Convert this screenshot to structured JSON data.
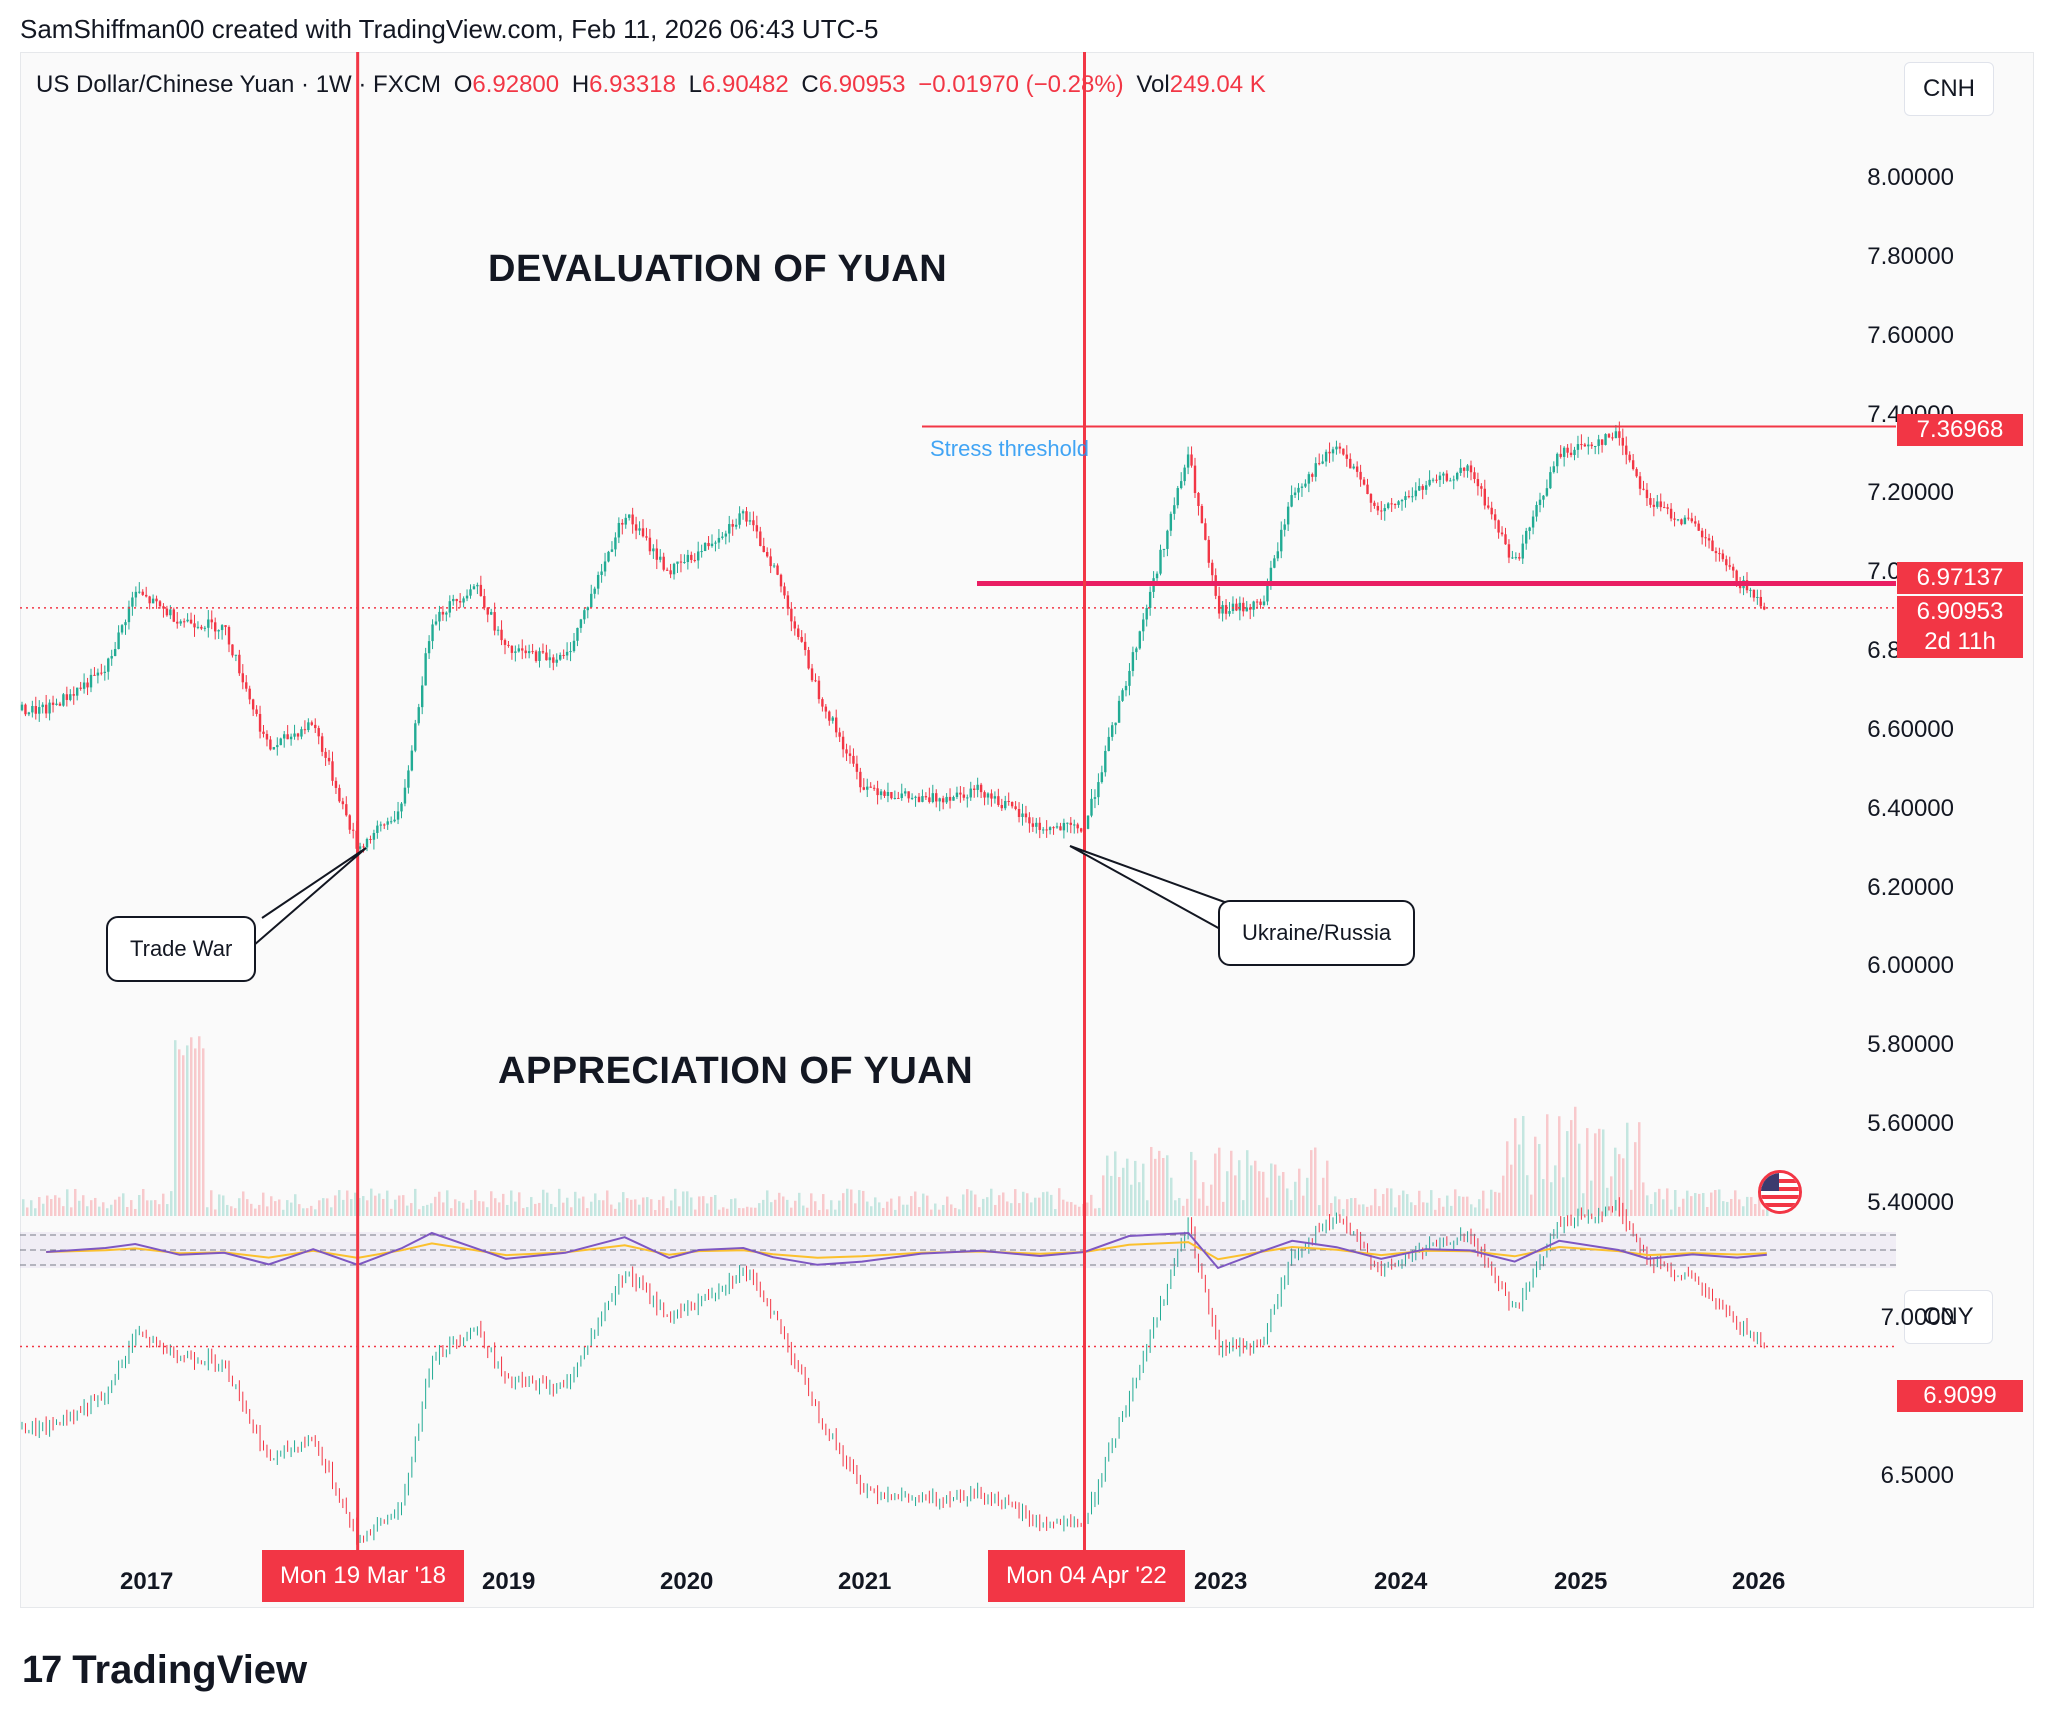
{
  "header": {
    "creator_line": "SamShiffman00 created with TradingView.com, Feb 11, 2026 06:43 UTC-5"
  },
  "symbol": {
    "name": "US Dollar/Chinese Yuan · 1W · FXCM",
    "open_label": "O",
    "open": "6.92800",
    "high_label": "H",
    "high": "6.93318",
    "low_label": "L",
    "low": "6.90482",
    "close_label": "C",
    "close": "6.90953",
    "change": "−0.01970 (−0.28%)",
    "vol_label": "Vol",
    "vol": "249.04 K"
  },
  "currency_top": "CNH",
  "currency_bottom": "CNY",
  "annotations": {
    "devaluation": "DEVALUATION OF YUAN",
    "appreciation": "APPRECIATION OF YUAN",
    "stress": "Stress threshold",
    "trade_war": "Trade War",
    "ukraine": "Ukraine/Russia"
  },
  "price_labels": {
    "stress": "7.36968",
    "support": "6.97137",
    "last": "6.90953",
    "countdown": "2d 11h",
    "cny_last": "6.9099"
  },
  "y_ticks_main": [
    "8.00000",
    "7.80000",
    "7.60000",
    "7.40000",
    "7.20000",
    "7.00000",
    "6.80000",
    "6.60000",
    "6.40000",
    "6.20000",
    "6.00000",
    "5.80000",
    "5.60000",
    "5.40000"
  ],
  "y_ticks_lower": [
    "7.0000",
    "6.5000"
  ],
  "x_axis": {
    "ticks": [
      "2017",
      "2019",
      "2020",
      "2021",
      "2023",
      "2024",
      "2025",
      "2026"
    ],
    "highlight_1": "Mon 19 Mar '18",
    "highlight_2": "Mon 04 Apr '22"
  },
  "brand": {
    "logo": "17",
    "name": "TradingView"
  },
  "colors": {
    "up": "#22ab94",
    "down": "#f23645",
    "line": "#f23645",
    "rsi": "#7e57c2",
    "rsi_ma": "#fbc02d"
  },
  "chart_data": {
    "type": "line",
    "title": "US Dollar/Chinese Yuan · 1W · FXCM",
    "x": [
      "2016-06",
      "2016-10",
      "2016-12",
      "2017-03",
      "2017-06",
      "2017-09",
      "2017-12",
      "2018-03",
      "2018-06",
      "2018-08",
      "2018-11",
      "2019-01",
      "2019-05",
      "2019-09",
      "2019-12",
      "2020-02",
      "2020-05",
      "2020-07",
      "2020-10",
      "2021-01",
      "2021-05",
      "2021-09",
      "2022-01",
      "2022-04",
      "2022-07",
      "2022-11",
      "2023-01",
      "2023-04",
      "2023-06",
      "2023-09",
      "2023-12",
      "2024-03",
      "2024-06",
      "2024-09",
      "2024-12",
      "2025-04",
      "2025-06",
      "2025-09",
      "2025-12",
      "2026-02"
    ],
    "series": [
      {
        "values": [
          6.65,
          6.75,
          6.95,
          6.88,
          6.86,
          6.55,
          6.62,
          6.3,
          6.4,
          6.88,
          6.97,
          6.8,
          6.78,
          7.15,
          7.0,
          7.05,
          7.15,
          7.02,
          6.7,
          6.46,
          6.42,
          6.45,
          6.35,
          6.35,
          6.75,
          7.3,
          6.9,
          6.92,
          7.2,
          7.32,
          7.15,
          7.22,
          7.26,
          7.02,
          7.3,
          7.35,
          7.18,
          7.12,
          6.98,
          6.91
        ]
      }
    ],
    "ylim": [
      5.4,
      8.0
    ],
    "horizontal_lines": [
      {
        "label": "Stress threshold",
        "value": 7.36968
      },
      {
        "value": 6.97137
      }
    ],
    "last_price": 6.90953,
    "lower_pane": {
      "currency": "CNY",
      "last": 6.9099,
      "ticks": [
        7.0,
        6.5
      ]
    }
  }
}
